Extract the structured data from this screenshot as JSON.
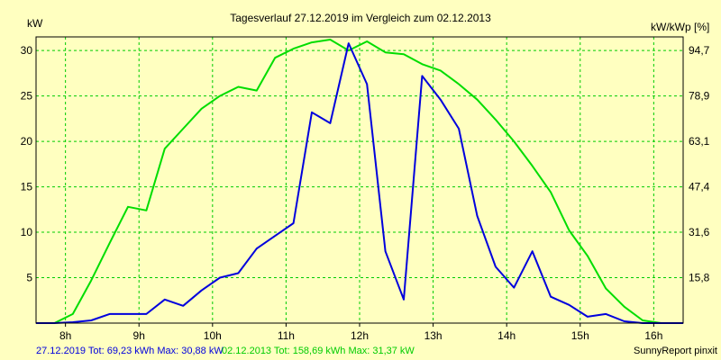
{
  "chart_data": {
    "type": "line",
    "title": "Tagesverlauf 27.12.2019 im Vergleich zum 02.12.2013",
    "ylabel_left": "kW",
    "ylabel_right": "kW/kWp [%]",
    "x_unit": "h",
    "xlim": [
      7.6,
      16.4
    ],
    "ylim": [
      0,
      31.5
    ],
    "x_ticks": [
      "8h",
      "9h",
      "10h",
      "11h",
      "12h",
      "13h",
      "14h",
      "15h",
      "16h"
    ],
    "y_ticks_left": [
      "5",
      "10",
      "15",
      "20",
      "25",
      "30"
    ],
    "y_ticks_right": [
      "15,8",
      "31,6",
      "47,4",
      "63,1",
      "78,9",
      "94,7"
    ],
    "grid": true,
    "series": [
      {
        "name": "27.12.2019",
        "color": "#0000dd",
        "x": [
          7.6,
          7.85,
          8.1,
          8.35,
          8.6,
          8.85,
          9.1,
          9.35,
          9.6,
          9.85,
          10.1,
          10.35,
          10.6,
          10.85,
          11.1,
          11.35,
          11.6,
          11.85,
          12.1,
          12.35,
          12.6,
          12.85,
          13.1,
          13.35,
          13.6,
          13.85,
          14.1,
          14.35,
          14.6,
          14.85,
          15.1,
          15.35,
          15.6,
          15.85,
          16.1,
          16.4
        ],
        "values": [
          0,
          0,
          0.1,
          0.3,
          1.0,
          1.0,
          1.0,
          2.6,
          1.9,
          3.6,
          5.0,
          5.5,
          8.2,
          9.6,
          11.0,
          23.2,
          22.0,
          30.8,
          26.3,
          7.9,
          2.6,
          27.2,
          24.6,
          21.4,
          11.8,
          6.2,
          3.9,
          7.9,
          2.9,
          2.0,
          0.7,
          1.0,
          0.2,
          0,
          0,
          0
        ]
      },
      {
        "name": "02.12.2013",
        "color": "#00dd00",
        "x": [
          7.6,
          7.85,
          8.1,
          8.35,
          8.6,
          8.85,
          9.1,
          9.35,
          9.6,
          9.85,
          10.1,
          10.35,
          10.6,
          10.85,
          11.1,
          11.35,
          11.6,
          11.85,
          12.1,
          12.35,
          12.6,
          12.85,
          13.1,
          13.35,
          13.6,
          13.85,
          14.1,
          14.35,
          14.6,
          14.85,
          15.1,
          15.35,
          15.6,
          15.85,
          16.1,
          16.4
        ],
        "values": [
          0,
          0,
          1.0,
          4.7,
          8.8,
          12.8,
          12.4,
          19.2,
          21.4,
          23.6,
          25.0,
          26.0,
          25.6,
          29.2,
          30.2,
          30.9,
          31.2,
          30.0,
          31.0,
          29.8,
          29.6,
          28.5,
          27.8,
          26.3,
          24.6,
          22.4,
          20.0,
          17.3,
          14.4,
          10.2,
          7.4,
          3.8,
          1.8,
          0.3,
          0,
          0
        ]
      }
    ]
  },
  "footer": {
    "summary_2019": "27.12.2019 Tot: 69,23 kWh Max: 30,88 kW",
    "summary_2013": "02.12.2013 Tot: 158,69 kWh Max: 31,37 kW",
    "credit": "SunnyReport pinxit"
  }
}
